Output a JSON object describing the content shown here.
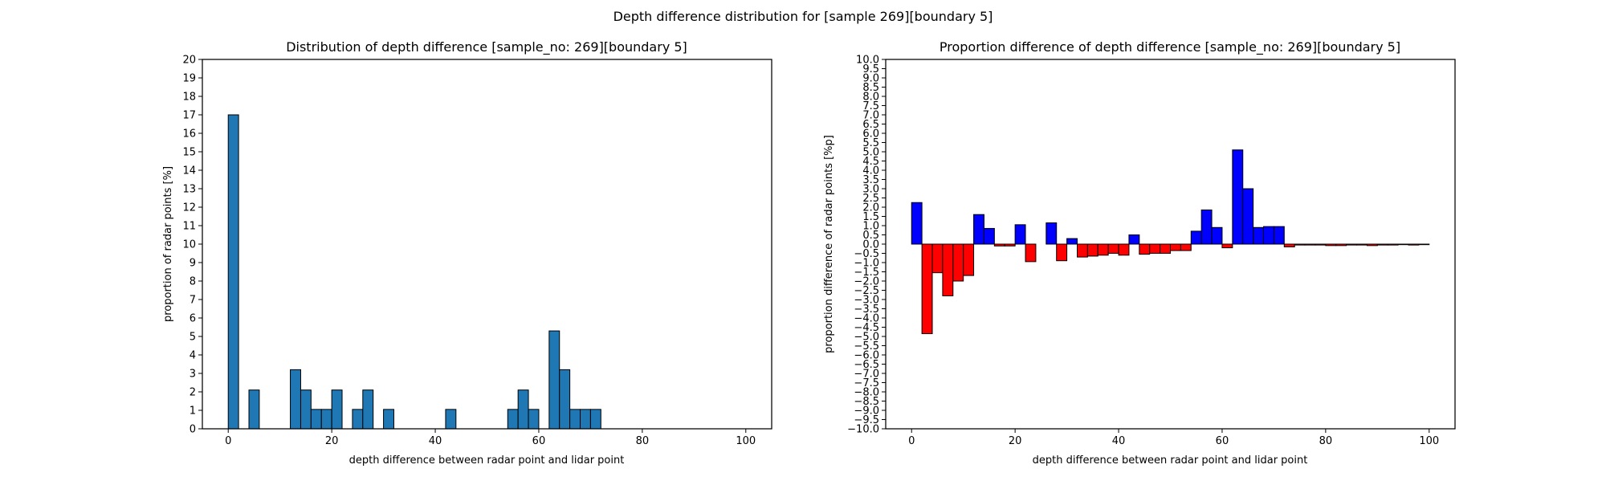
{
  "figure": {
    "suptitle": "Depth difference distribution for [sample 269][boundary 5]"
  },
  "chart_data": [
    {
      "type": "bar",
      "title": "Distribution of depth difference [sample_no: 269][boundary 5]",
      "xlabel": "depth difference between radar point and lidar point",
      "ylabel": "proportion of radar points [%]",
      "xlim": [
        -5,
        105
      ],
      "ylim": [
        0,
        20
      ],
      "xticks": [
        0,
        20,
        40,
        60,
        80,
        100
      ],
      "yticks": [
        0,
        1,
        2,
        3,
        4,
        5,
        6,
        7,
        8,
        9,
        10,
        11,
        12,
        13,
        14,
        15,
        16,
        17,
        18,
        19,
        20
      ],
      "bin_width": 2,
      "colors": {
        "bar": "#1f77b4",
        "edge": "#000000"
      },
      "bins": [
        {
          "x": 0,
          "y": 17.0
        },
        {
          "x": 4,
          "y": 2.1
        },
        {
          "x": 12,
          "y": 3.2
        },
        {
          "x": 14,
          "y": 2.1
        },
        {
          "x": 16,
          "y": 1.05
        },
        {
          "x": 18,
          "y": 1.05
        },
        {
          "x": 20,
          "y": 2.1
        },
        {
          "x": 24,
          "y": 1.05
        },
        {
          "x": 26,
          "y": 2.1
        },
        {
          "x": 30,
          "y": 1.05
        },
        {
          "x": 42,
          "y": 1.05
        },
        {
          "x": 54,
          "y": 1.05
        },
        {
          "x": 56,
          "y": 2.1
        },
        {
          "x": 58,
          "y": 1.05
        },
        {
          "x": 62,
          "y": 5.3
        },
        {
          "x": 64,
          "y": 3.2
        },
        {
          "x": 66,
          "y": 1.05
        },
        {
          "x": 68,
          "y": 1.05
        },
        {
          "x": 70,
          "y": 1.05
        }
      ]
    },
    {
      "type": "bar",
      "title": "Proportion difference of depth difference [sample_no: 269][boundary 5]",
      "xlabel": "depth difference between radar point and lidar point",
      "ylabel": "proportion difference of radar points [%p]",
      "xlim": [
        -5,
        105
      ],
      "ylim": [
        -10,
        10
      ],
      "xticks": [
        0,
        20,
        40,
        60,
        80,
        100
      ],
      "yticks": [
        -10.0,
        -9.5,
        -9.0,
        -8.5,
        -8.0,
        -7.5,
        -7.0,
        -6.5,
        -6.0,
        -5.5,
        -5.0,
        -4.5,
        -4.0,
        -3.5,
        -3.0,
        -2.5,
        -2.0,
        -1.5,
        -1.0,
        -0.5,
        0.0,
        0.5,
        1.0,
        1.5,
        2.0,
        2.5,
        3.0,
        3.5,
        4.0,
        4.5,
        5.0,
        5.5,
        6.0,
        6.5,
        7.0,
        7.5,
        8.0,
        8.5,
        9.0,
        9.5,
        10.0
      ],
      "bin_width": 2,
      "colors": {
        "positive": "#0000ff",
        "negative": "#ff0000",
        "edge": "#000000"
      },
      "bins": [
        {
          "x": 0,
          "y": 2.25
        },
        {
          "x": 2,
          "y": -4.85
        },
        {
          "x": 4,
          "y": -1.55
        },
        {
          "x": 6,
          "y": -2.8
        },
        {
          "x": 8,
          "y": -2.0
        },
        {
          "x": 10,
          "y": -1.7
        },
        {
          "x": 12,
          "y": 1.6
        },
        {
          "x": 14,
          "y": 0.85
        },
        {
          "x": 16,
          "y": -0.1
        },
        {
          "x": 18,
          "y": -0.1
        },
        {
          "x": 20,
          "y": 1.05
        },
        {
          "x": 22,
          "y": -0.95
        },
        {
          "x": 26,
          "y": 1.15
        },
        {
          "x": 28,
          "y": -0.9
        },
        {
          "x": 30,
          "y": 0.3
        },
        {
          "x": 32,
          "y": -0.7
        },
        {
          "x": 34,
          "y": -0.65
        },
        {
          "x": 36,
          "y": -0.6
        },
        {
          "x": 38,
          "y": -0.5
        },
        {
          "x": 40,
          "y": -0.6
        },
        {
          "x": 42,
          "y": 0.5
        },
        {
          "x": 44,
          "y": -0.55
        },
        {
          "x": 46,
          "y": -0.5
        },
        {
          "x": 48,
          "y": -0.5
        },
        {
          "x": 50,
          "y": -0.35
        },
        {
          "x": 52,
          "y": -0.35
        },
        {
          "x": 54,
          "y": 0.7
        },
        {
          "x": 56,
          "y": 1.85
        },
        {
          "x": 58,
          "y": 0.9
        },
        {
          "x": 60,
          "y": -0.2
        },
        {
          "x": 62,
          "y": 5.1
        },
        {
          "x": 64,
          "y": 3.0
        },
        {
          "x": 66,
          "y": 0.9
        },
        {
          "x": 68,
          "y": 0.95
        },
        {
          "x": 70,
          "y": 0.95
        },
        {
          "x": 72,
          "y": -0.15
        },
        {
          "x": 74,
          "y": -0.05
        },
        {
          "x": 76,
          "y": -0.05
        },
        {
          "x": 78,
          "y": -0.05
        },
        {
          "x": 80,
          "y": -0.08
        },
        {
          "x": 82,
          "y": -0.08
        },
        {
          "x": 84,
          "y": -0.05
        },
        {
          "x": 86,
          "y": -0.05
        },
        {
          "x": 88,
          "y": -0.08
        },
        {
          "x": 90,
          "y": -0.05
        },
        {
          "x": 92,
          "y": -0.05
        },
        {
          "x": 94,
          "y": -0.03
        },
        {
          "x": 96,
          "y": -0.05
        },
        {
          "x": 98,
          "y": -0.03
        }
      ]
    }
  ]
}
